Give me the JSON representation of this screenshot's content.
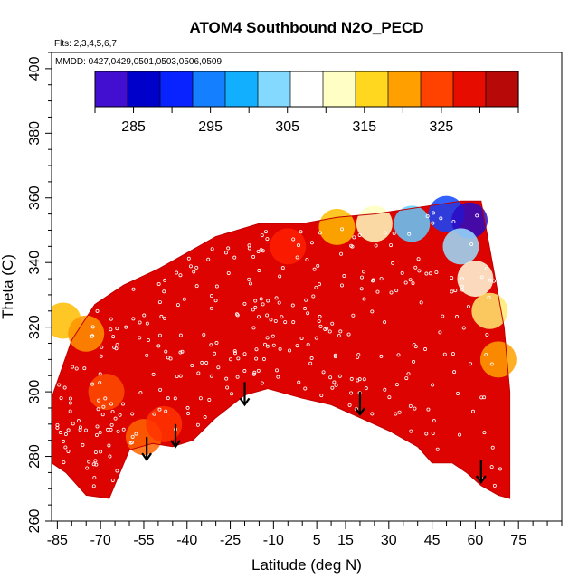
{
  "chart_data": {
    "type": "heatmap",
    "title": "ATOM4 Southbound N2O_PECD",
    "flights_label": "Flts: 2,3,4,5,6,7",
    "dates_label": "MMDD: 0427,0429,0501,0503,0506,0509",
    "xlabel": "Latitude (deg N)",
    "ylabel": "Theta (C)",
    "xlim": [
      -87,
      90
    ],
    "ylim": [
      260,
      405
    ],
    "xticks": [
      -85,
      -70,
      -55,
      -40,
      -25,
      -10,
      5,
      15,
      30,
      45,
      60,
      75
    ],
    "yticks": [
      260,
      280,
      300,
      320,
      340,
      360,
      380,
      400
    ],
    "colorbar": {
      "vmin": 280,
      "vmax": 335,
      "ticks": [
        285,
        295,
        305,
        315,
        325
      ],
      "colors": [
        "#7a1cf0",
        "#0000aa",
        "#0000ff",
        "#1a73ff",
        "#00a8ff",
        "#7ad6ff",
        "#ffffff",
        "#ffffc0",
        "#ffd000",
        "#ff9000",
        "#ff2000",
        "#d80000",
        "#9c1010"
      ]
    },
    "field_outline": {
      "lower_boundary": [
        [
          -87,
          278
        ],
        [
          -82,
          275
        ],
        [
          -75,
          268
        ],
        [
          -67,
          267
        ],
        [
          -60,
          282
        ],
        [
          -52,
          284
        ],
        [
          -45,
          283
        ],
        [
          -38,
          285
        ],
        [
          -30,
          292
        ],
        [
          -20,
          299
        ],
        [
          -12,
          301
        ],
        [
          0,
          298
        ],
        [
          10,
          296
        ],
        [
          20,
          292
        ],
        [
          30,
          288
        ],
        [
          40,
          283
        ],
        [
          45,
          278
        ],
        [
          52,
          278
        ],
        [
          57,
          275
        ],
        [
          62,
          271
        ],
        [
          68,
          268
        ],
        [
          72,
          267
        ]
      ],
      "upper_boundary": [
        [
          -87,
          298
        ],
        [
          -80,
          316
        ],
        [
          -72,
          327
        ],
        [
          -62,
          333
        ],
        [
          -50,
          338
        ],
        [
          -40,
          343
        ],
        [
          -30,
          348
        ],
        [
          -15,
          352
        ],
        [
          0,
          352
        ],
        [
          12,
          354
        ],
        [
          25,
          355
        ],
        [
          40,
          357
        ],
        [
          55,
          359
        ],
        [
          62,
          359
        ],
        [
          70,
          320
        ],
        [
          72,
          300
        ]
      ]
    },
    "background_value": 330,
    "anomalies": [
      {
        "lat": -83,
        "theta": 322,
        "value": 318
      },
      {
        "lat": -75,
        "theta": 318,
        "value": 321
      },
      {
        "lat": -68,
        "theta": 300,
        "value": 324
      },
      {
        "lat": -55,
        "theta": 286,
        "value": 323
      },
      {
        "lat": -48,
        "theta": 290,
        "value": 325
      },
      {
        "lat": -5,
        "theta": 345,
        "value": 326
      },
      {
        "lat": 12,
        "theta": 351,
        "value": 318
      },
      {
        "lat": 25,
        "theta": 352,
        "value": 312
      },
      {
        "lat": 38,
        "theta": 352,
        "value": 302
      },
      {
        "lat": 50,
        "theta": 355,
        "value": 292
      },
      {
        "lat": 58,
        "theta": 353,
        "value": 283
      },
      {
        "lat": 55,
        "theta": 345,
        "value": 304
      },
      {
        "lat": 60,
        "theta": 335,
        "value": 310
      },
      {
        "lat": 65,
        "theta": 325,
        "value": 314
      },
      {
        "lat": 68,
        "theta": 310,
        "value": 320
      }
    ],
    "profile_arrows": [
      {
        "lat": -54,
        "theta_top": 286,
        "theta_bottom": 279
      },
      {
        "lat": -44,
        "theta_top": 290,
        "theta_bottom": 283
      },
      {
        "lat": -20,
        "theta_top": 303,
        "theta_bottom": 296
      },
      {
        "lat": 20,
        "theta_top": 300,
        "theta_bottom": 293
      },
      {
        "lat": 62,
        "theta_top": 279,
        "theta_bottom": 272
      }
    ]
  }
}
